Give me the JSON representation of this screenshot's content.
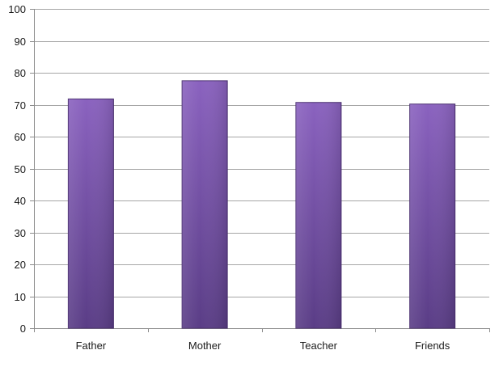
{
  "chart_data": {
    "type": "bar",
    "title": "",
    "xlabel": "",
    "ylabel": "",
    "categories": [
      "Father",
      "Mother",
      "Teacher",
      "Friends"
    ],
    "values": [
      71.8,
      77.5,
      70.7,
      70.2
    ],
    "ylim": [
      0,
      100
    ],
    "yticks": [
      "0",
      "10",
      "20",
      "30",
      "40",
      "50",
      "60",
      "70",
      "80",
      "90",
      "100"
    ],
    "grid": true,
    "legend": "none",
    "colors": {
      "bar_light": "#8a62bf",
      "bar_dark": "#5a3d86",
      "bar_edge": "#4a2f70",
      "grid": "#a6a6a6",
      "axis": "#8c8c8c"
    }
  }
}
